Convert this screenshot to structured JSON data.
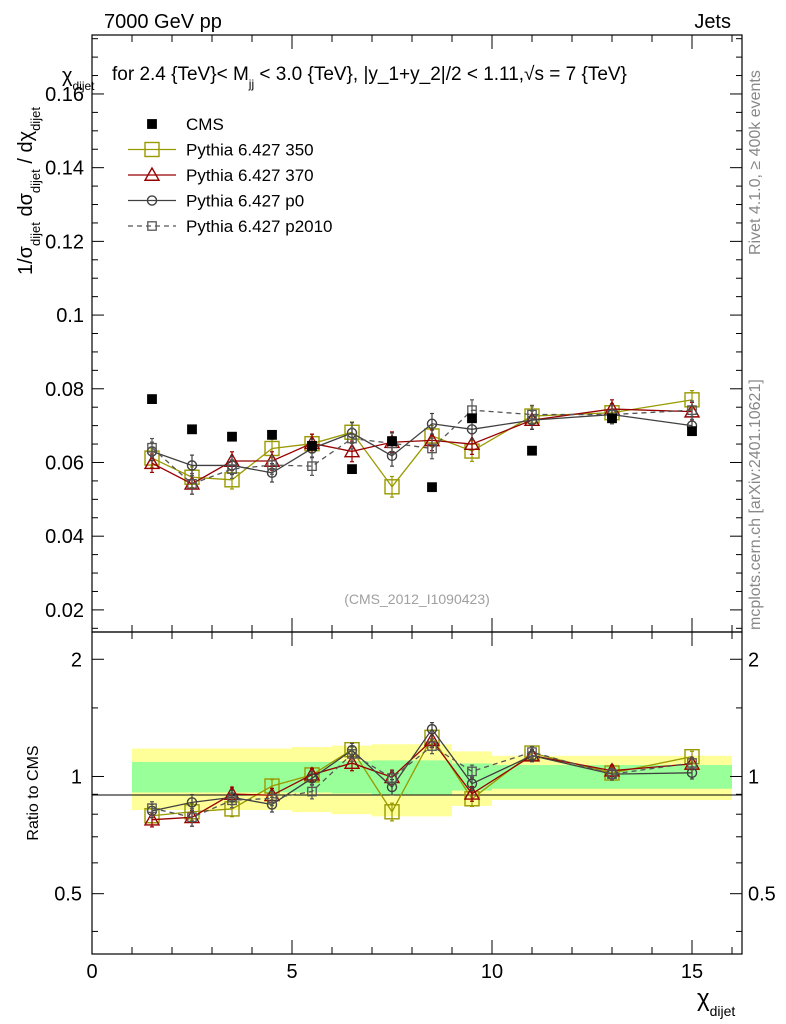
{
  "header": {
    "left_title": "7000 GeV pp",
    "right_title": "Jets",
    "plot_title": "for 2.4 {TeV}< M",
    "plot_title_sub": "jj",
    "plot_title_tail": " < 3.0 {TeV}, |y_1+y_2|/2 < 1.11,",
    "plot_title_sqrt": "√s = 7 {TeV}",
    "corner_label": "χ",
    "corner_label_sub": "dijet",
    "watermark": "(CMS_2012_I1090423)",
    "side_rivet": "Rivet 4.1.0, ≥ 400k events",
    "side_mcplots": "mcplots.cern.ch [arXiv:2401.10621]"
  },
  "axes": {
    "ylabel_main_prefix": "1/σ",
    "ylabel_main_sub1": "dijet",
    "ylabel_main_mid": " dσ",
    "ylabel_main_sub2": "dijet",
    "ylabel_main_tail": " / dχ",
    "ylabel_main_sub3": "dijet",
    "ylabel_ratio": "Ratio to CMS",
    "xlabel": "χ",
    "xlabel_sub": "dijet"
  },
  "chart_data": {
    "type": "line",
    "x_range": [
      0,
      16.25
    ],
    "main_ylim": [
      0.014,
      0.176
    ],
    "main_yticks": [
      0.02,
      0.04,
      0.06,
      0.08,
      0.1,
      0.12,
      0.14,
      0.16
    ],
    "main_ytick_labels": [
      "0.02",
      "0.04",
      "0.06",
      "0.08",
      "0.1",
      "0.12",
      "0.14",
      "0.16"
    ],
    "ratio_ylim": [
      0.35,
      2.35
    ],
    "ratio_yscale": "log",
    "ratio_yticks": [
      0.5,
      1,
      2
    ],
    "ratio_ytick_labels": [
      "0.5",
      "1",
      "2"
    ],
    "xticks": [
      0,
      5,
      10,
      15
    ],
    "xtick_labels": [
      "0",
      "5",
      "10",
      "15"
    ],
    "bin_edges": [
      1,
      2,
      3,
      4,
      5,
      6,
      7,
      8,
      9,
      10,
      12,
      14,
      16
    ],
    "x": [
      1.5,
      2.5,
      3.5,
      4.5,
      5.5,
      6.5,
      7.5,
      8.5,
      9.5,
      11,
      13,
      15
    ],
    "data": {
      "name": "CMS",
      "values": [
        0.0772,
        0.069,
        0.067,
        0.0675,
        0.0645,
        0.0582,
        0.0658,
        0.0533,
        0.072,
        0.0632,
        0.072,
        0.0685
      ],
      "band_inner_rel": [
        0.09,
        0.09,
        0.09,
        0.09,
        0.09,
        0.095,
        0.1,
        0.1,
        0.08,
        0.07,
        0.07,
        0.07
      ],
      "band_outer_rel": [
        0.18,
        0.18,
        0.18,
        0.18,
        0.19,
        0.2,
        0.21,
        0.21,
        0.16,
        0.13,
        0.13,
        0.13
      ]
    },
    "series": [
      {
        "name": "Pythia 6.427 350",
        "color": "#999900",
        "marker": "square-open",
        "dash": "",
        "values": [
          0.0612,
          0.056,
          0.0553,
          0.0638,
          0.0651,
          0.0682,
          0.0534,
          0.0672,
          0.0631,
          0.0726,
          0.0735,
          0.077
        ],
        "errors": [
          0.0025,
          0.0028,
          0.0025,
          0.0025,
          0.0025,
          0.0028,
          0.0028,
          0.0028,
          0.0028,
          0.0025,
          0.0025,
          0.0025
        ]
      },
      {
        "name": "Pythia 6.427 370",
        "color": "#990000",
        "marker": "triangle-open",
        "dash": "",
        "values": [
          0.0598,
          0.0542,
          0.0604,
          0.0604,
          0.0652,
          0.063,
          0.0655,
          0.066,
          0.065,
          0.0715,
          0.0745,
          0.0738
        ],
        "errors": [
          0.0025,
          0.0028,
          0.0025,
          0.0025,
          0.0025,
          0.0028,
          0.0028,
          0.0028,
          0.0028,
          0.0025,
          0.0025,
          0.0025
        ]
      },
      {
        "name": "Pythia 6.427 p0",
        "color": "#404040",
        "marker": "circle-open",
        "dash": "",
        "values": [
          0.063,
          0.0592,
          0.0592,
          0.0572,
          0.0638,
          0.068,
          0.0618,
          0.0705,
          0.069,
          0.0715,
          0.073,
          0.07
        ],
        "errors": [
          0.0025,
          0.0028,
          0.0025,
          0.0025,
          0.0025,
          0.0028,
          0.0028,
          0.0028,
          0.0028,
          0.0025,
          0.0025,
          0.0025
        ]
      },
      {
        "name": "Pythia 6.427 p2010",
        "color": "#555555",
        "marker": "square-small",
        "dash": "5,4",
        "values": [
          0.064,
          0.0542,
          0.0582,
          0.0593,
          0.059,
          0.0665,
          0.0652,
          0.0638,
          0.0742,
          0.073,
          0.073,
          0.0742
        ],
        "errors": [
          0.0025,
          0.0028,
          0.0025,
          0.0025,
          0.0025,
          0.0028,
          0.0028,
          0.0028,
          0.0028,
          0.0025,
          0.0025,
          0.0025
        ]
      }
    ],
    "band_colors": {
      "inner": "#99ff99",
      "outer": "#ffff99"
    }
  }
}
